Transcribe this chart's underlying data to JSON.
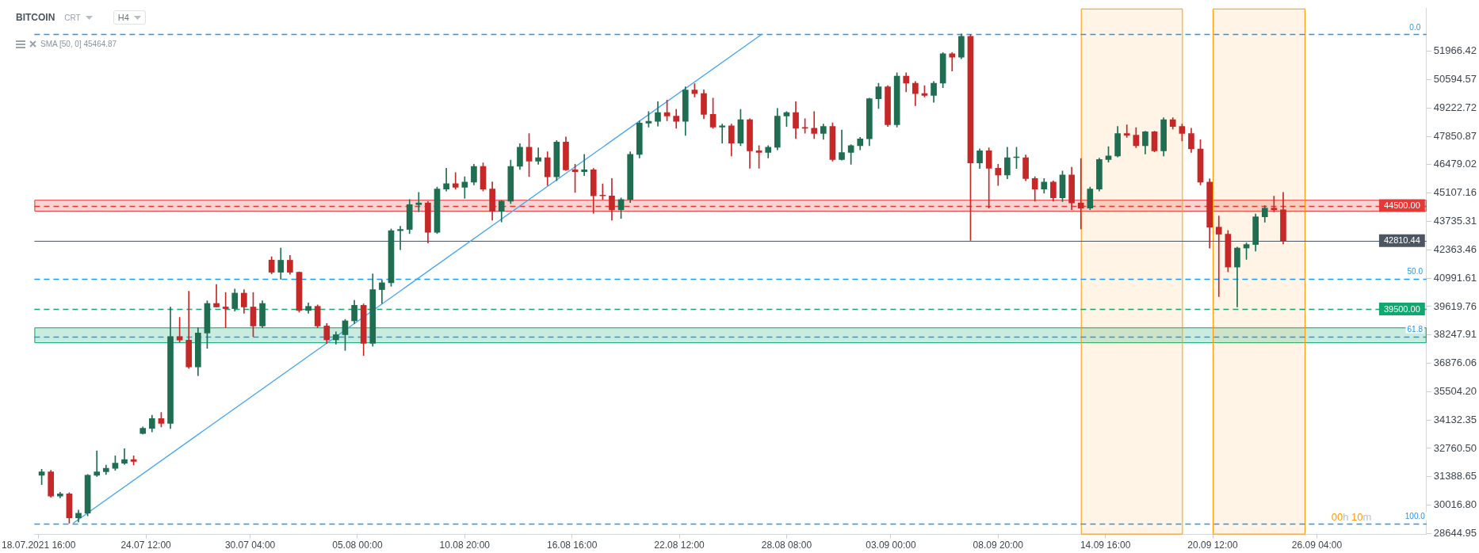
{
  "chart_data": {
    "type": "candlestick",
    "title": "BITCOIN",
    "annotations": [
      "CRT",
      "H4",
      "SMA [50, 0] 45464.87",
      "00h 10m",
      {
        "text": "0.0",
        "x": "2021-10-01T12:00",
        "y": 52800
      },
      {
        "text": "50.0",
        "x": "2021-10-01T12:00",
        "y": 40970
      },
      {
        "text": "61.8",
        "x": "2021-10-01T12:00",
        "y": 38178
      },
      {
        "text": "100.0",
        "x": "2021-10-01T12:00",
        "y": 29140
      }
    ],
    "xlim": [
      "2021-07-18T10:30",
      "2021-10-02T03:00"
    ],
    "xticks": [
      {
        "value": "2021-07-18T16:00",
        "label": "18.07.2021 16:00"
      },
      {
        "value": "2021-07-24T12:00",
        "label": "24.07 12:00"
      },
      {
        "value": "2021-07-30T04:00",
        "label": "30.07 04:00"
      },
      {
        "value": "2021-08-05T00:00",
        "label": "05.08 00:00"
      },
      {
        "value": "2021-08-10T20:00",
        "label": "10.08 20:00"
      },
      {
        "value": "2021-08-16T16:00",
        "label": "16.08 16:00"
      },
      {
        "value": "2021-08-22T12:00",
        "label": "22.08 12:00"
      },
      {
        "value": "2021-08-28T08:00",
        "label": "28.08 08:00"
      },
      {
        "value": "2021-09-03T00:00",
        "label": "03.09 00:00"
      },
      {
        "value": "2021-09-08T20:00",
        "label": "08.09 20:00"
      },
      {
        "value": "2021-09-14T16:00",
        "label": "14.09 16:00"
      },
      {
        "value": "2021-09-20T12:00",
        "label": "20.09 12:00"
      },
      {
        "value": "2021-09-26T04:00",
        "label": "26.09 04:00"
      }
    ],
    "ylim": [
      28600,
      54030
    ],
    "yticks": [
      28644.95,
      {
        "value": 30016.8,
        "label": "30016.80"
      },
      31388.65,
      {
        "value": 32760.5,
        "label": "32760.50"
      },
      34132.35,
      {
        "value": 35504.2,
        "label": "35504.20"
      },
      36876.06,
      38247.91,
      39619.76,
      40991.61,
      42363.46,
      43735.31,
      45107.16,
      46479.02,
      47850.87,
      49222.72,
      50594.57,
      51966.42
    ],
    "series": [
      {
        "x": [
          "2021-07-18T20:00",
          "2021-07-19T08:00",
          "2021-07-19T20:00",
          "2021-07-20T08:00",
          "2021-07-20T20:00",
          "2021-07-21T08:00",
          "2021-07-21T20:00",
          "2021-07-22T08:00",
          "2021-07-22T20:00",
          "2021-07-23T08:00",
          "2021-07-23T20:00",
          "2021-07-24T08:00",
          "2021-07-24T20:00",
          "2021-07-25T08:00",
          "2021-07-25T20:00",
          "2021-07-26T08:00",
          "2021-07-26T20:00",
          "2021-07-27T08:00",
          "2021-07-27T20:00",
          "2021-07-28T08:00",
          "2021-07-28T20:00",
          "2021-07-29T08:00",
          "2021-07-29T20:00",
          "2021-07-30T08:00",
          "2021-07-30T20:00",
          "2021-07-31T08:00",
          "2021-07-31T20:00",
          "2021-08-01T08:00",
          "2021-08-01T20:00",
          "2021-08-02T08:00",
          "2021-08-02T20:00",
          "2021-08-03T08:00",
          "2021-08-03T20:00",
          "2021-08-04T08:00",
          "2021-08-04T20:00",
          "2021-08-05T08:00",
          "2021-08-05T20:00",
          "2021-08-06T08:00",
          "2021-08-06T20:00",
          "2021-08-07T08:00",
          "2021-08-07T20:00",
          "2021-08-08T08:00",
          "2021-08-08T20:00",
          "2021-08-09T08:00",
          "2021-08-09T20:00",
          "2021-08-10T08:00",
          "2021-08-10T20:00",
          "2021-08-11T08:00",
          "2021-08-11T20:00",
          "2021-08-12T08:00",
          "2021-08-12T20:00",
          "2021-08-13T08:00",
          "2021-08-13T20:00",
          "2021-08-14T08:00",
          "2021-08-14T20:00",
          "2021-08-15T08:00",
          "2021-08-15T20:00",
          "2021-08-16T08:00",
          "2021-08-16T20:00",
          "2021-08-17T08:00",
          "2021-08-17T20:00",
          "2021-08-18T08:00",
          "2021-08-18T20:00",
          "2021-08-19T08:00",
          "2021-08-19T20:00",
          "2021-08-20T08:00",
          "2021-08-20T20:00",
          "2021-08-21T08:00",
          "2021-08-21T20:00",
          "2021-08-22T08:00",
          "2021-08-22T20:00",
          "2021-08-23T08:00",
          "2021-08-23T20:00",
          "2021-08-24T08:00",
          "2021-08-24T20:00",
          "2021-08-25T08:00",
          "2021-08-25T20:00",
          "2021-08-26T08:00",
          "2021-08-26T20:00",
          "2021-08-27T08:00",
          "2021-08-27T20:00",
          "2021-08-28T08:00",
          "2021-08-28T20:00",
          "2021-08-29T08:00",
          "2021-08-29T20:00",
          "2021-08-30T08:00",
          "2021-08-30T20:00",
          "2021-08-31T08:00",
          "2021-08-31T20:00",
          "2021-09-01T08:00",
          "2021-09-01T20:00",
          "2021-09-02T08:00",
          "2021-09-02T20:00",
          "2021-09-03T08:00",
          "2021-09-03T20:00",
          "2021-09-04T08:00",
          "2021-09-04T20:00",
          "2021-09-05T08:00",
          "2021-09-05T20:00",
          "2021-09-06T08:00",
          "2021-09-06T20:00",
          "2021-09-07T08:00",
          "2021-09-07T20:00",
          "2021-09-08T08:00",
          "2021-09-08T20:00",
          "2021-09-09T08:00",
          "2021-09-09T20:00",
          "2021-09-10T08:00",
          "2021-09-10T20:00",
          "2021-09-11T08:00",
          "2021-09-11T20:00",
          "2021-09-12T08:00",
          "2021-09-12T20:00",
          "2021-09-13T08:00",
          "2021-09-13T20:00",
          "2021-09-14T08:00",
          "2021-09-14T20:00",
          "2021-09-15T08:00",
          "2021-09-15T20:00",
          "2021-09-16T08:00",
          "2021-09-16T20:00",
          "2021-09-17T08:00",
          "2021-09-17T20:00",
          "2021-09-18T08:00",
          "2021-09-18T20:00",
          "2021-09-19T08:00",
          "2021-09-19T20:00",
          "2021-09-20T08:00",
          "2021-09-20T20:00",
          "2021-09-21T08:00",
          "2021-09-21T20:00",
          "2021-09-22T08:00",
          "2021-09-22T20:00",
          "2021-09-23T08:00",
          "2021-09-23T20:00",
          "2021-09-24T08:00"
        ],
        "ohlc": [
          [
            31460,
            31750,
            31010,
            31630
          ],
          [
            31630,
            31700,
            30400,
            30460
          ],
          [
            30460,
            30640,
            30370,
            30560
          ],
          [
            30560,
            30620,
            29140,
            29400
          ],
          [
            29400,
            29780,
            29200,
            29630
          ],
          [
            29630,
            31500,
            29500,
            31460
          ],
          [
            31460,
            32640,
            31400,
            31630
          ],
          [
            31630,
            31950,
            31500,
            31800
          ],
          [
            31800,
            32400,
            31700,
            32050
          ],
          [
            32050,
            32750,
            31990,
            32220
          ],
          [
            32220,
            32400,
            31960,
            32130
          ],
          [
            33480,
            33800,
            33450,
            33730
          ],
          [
            33730,
            34370,
            33560,
            34200
          ],
          [
            34200,
            34500,
            33800,
            33970
          ],
          [
            33970,
            39600,
            33720,
            38170
          ],
          [
            38170,
            39100,
            37900,
            38000
          ],
          [
            38000,
            40360,
            36630,
            36700
          ],
          [
            36700,
            38590,
            36280,
            38340
          ],
          [
            38340,
            39900,
            37600,
            39770
          ],
          [
            39770,
            40690,
            39600,
            39600
          ],
          [
            39600,
            40300,
            38600,
            39520
          ],
          [
            39520,
            40470,
            39400,
            40270
          ],
          [
            40270,
            40440,
            39300,
            39600
          ],
          [
            39600,
            40300,
            38170,
            38680
          ],
          [
            38680,
            39900,
            38600,
            39770
          ],
          [
            41870,
            42030,
            41200,
            41280
          ],
          [
            41280,
            42450,
            40940,
            41860
          ],
          [
            41860,
            42100,
            41180,
            41280
          ],
          [
            41280,
            41300,
            39350,
            39430
          ],
          [
            39430,
            39800,
            39300,
            39630
          ],
          [
            39630,
            39700,
            38600,
            38680
          ],
          [
            38680,
            38800,
            37830,
            38010
          ],
          [
            38010,
            38400,
            37800,
            38260
          ],
          [
            38260,
            39000,
            37500,
            38930
          ],
          [
            38930,
            39920,
            38800,
            39680
          ],
          [
            39680,
            39750,
            37250,
            37840
          ],
          [
            37840,
            41200,
            37700,
            40440
          ],
          [
            40440,
            40900,
            39770,
            40770
          ],
          [
            40770,
            43375,
            40600,
            43290
          ],
          [
            43290,
            43500,
            42370,
            43350
          ],
          [
            43350,
            44800,
            43150,
            44550
          ],
          [
            44550,
            45140,
            44200,
            44630
          ],
          [
            44630,
            44700,
            42700,
            43210
          ],
          [
            43210,
            45400,
            43150,
            45300
          ],
          [
            45300,
            46310,
            45200,
            45560
          ],
          [
            45560,
            46100,
            45300,
            45390
          ],
          [
            45390,
            45900,
            44850,
            45640
          ],
          [
            45640,
            46500,
            45500,
            46400
          ],
          [
            46400,
            46570,
            45200,
            45300
          ],
          [
            45300,
            45650,
            43800,
            44220
          ],
          [
            44220,
            44750,
            43710,
            44720
          ],
          [
            44720,
            46700,
            44600,
            46400
          ],
          [
            46400,
            47500,
            46250,
            47320
          ],
          [
            47320,
            47990,
            45900,
            46650
          ],
          [
            46650,
            47300,
            46500,
            46820
          ],
          [
            46820,
            47100,
            45470,
            45890
          ],
          [
            45890,
            47650,
            45700,
            47570
          ],
          [
            47570,
            47820,
            46200,
            46230
          ],
          [
            46230,
            46500,
            45140,
            46140
          ],
          [
            46140,
            46980,
            45950,
            46230
          ],
          [
            46230,
            46300,
            44130,
            44970
          ],
          [
            44970,
            45550,
            44800,
            44970
          ],
          [
            44970,
            45810,
            43800,
            44300
          ],
          [
            44300,
            44870,
            43880,
            44800
          ],
          [
            44800,
            47100,
            44650,
            46980
          ],
          [
            46980,
            48600,
            46800,
            48490
          ],
          [
            48490,
            49050,
            48300,
            48580
          ],
          [
            48580,
            49530,
            48350,
            49000
          ],
          [
            49000,
            49600,
            48600,
            48830
          ],
          [
            48830,
            49150,
            48240,
            48580
          ],
          [
            48580,
            50250,
            47900,
            50090
          ],
          [
            50090,
            50400,
            49750,
            49920
          ],
          [
            49920,
            50100,
            48700,
            48910
          ],
          [
            48910,
            49700,
            48230,
            48300
          ],
          [
            48300,
            48450,
            47520,
            48360
          ],
          [
            48360,
            48450,
            46900,
            47520
          ],
          [
            47520,
            49150,
            47400,
            48660
          ],
          [
            48660,
            48700,
            46310,
            47150
          ],
          [
            47150,
            47400,
            46310,
            47070
          ],
          [
            47070,
            47400,
            46800,
            47320
          ],
          [
            47320,
            49200,
            47200,
            48830
          ],
          [
            48830,
            49050,
            48330,
            49000
          ],
          [
            49000,
            49530,
            47740,
            48240
          ],
          [
            48240,
            48700,
            48000,
            48240
          ],
          [
            48240,
            49050,
            47740,
            47990
          ],
          [
            47990,
            48450,
            47700,
            48330
          ],
          [
            48330,
            48500,
            46650,
            46730
          ],
          [
            46730,
            48160,
            46700,
            47070
          ],
          [
            47070,
            47450,
            46500,
            47400
          ],
          [
            47400,
            47800,
            47200,
            47730
          ],
          [
            47730,
            49700,
            47400,
            49670
          ],
          [
            49670,
            50420,
            49200,
            50250
          ],
          [
            50250,
            50300,
            48330,
            48410
          ],
          [
            48410,
            50930,
            48300,
            50760
          ],
          [
            50760,
            50930,
            50000,
            50420
          ],
          [
            50420,
            50500,
            49330,
            49920
          ],
          [
            49920,
            50300,
            49750,
            49830
          ],
          [
            49830,
            50500,
            49500,
            50420
          ],
          [
            50420,
            51900,
            50200,
            51850
          ],
          [
            51850,
            51900,
            51010,
            51680
          ],
          [
            51680,
            52800,
            51600,
            52690
          ],
          [
            52690,
            52770,
            42820,
            46560
          ],
          [
            46560,
            47250,
            46300,
            47150
          ],
          [
            47150,
            47300,
            44380,
            46310
          ],
          [
            46310,
            46500,
            45470,
            45980
          ],
          [
            45980,
            47320,
            45800,
            46820
          ],
          [
            46820,
            47320,
            46300,
            46820
          ],
          [
            46820,
            46950,
            45700,
            45810
          ],
          [
            45810,
            45900,
            44720,
            45300
          ],
          [
            45300,
            45810,
            45100,
            45640
          ],
          [
            45640,
            45700,
            44720,
            44880
          ],
          [
            44880,
            46180,
            44700,
            45980
          ],
          [
            45980,
            46360,
            44300,
            44630
          ],
          [
            44630,
            46780,
            43370,
            44380
          ],
          [
            44380,
            45400,
            44300,
            45300
          ],
          [
            45300,
            46800,
            45200,
            46730
          ],
          [
            46730,
            47350,
            46600,
            46900
          ],
          [
            46900,
            48330,
            46850,
            47990
          ],
          [
            47990,
            48410,
            47800,
            47910
          ],
          [
            47910,
            48270,
            47300,
            47400
          ],
          [
            47400,
            48100,
            47000,
            48070
          ],
          [
            48070,
            48100,
            47100,
            47150
          ],
          [
            47150,
            48750,
            46900,
            48660
          ],
          [
            48660,
            48750,
            48200,
            48330
          ],
          [
            48330,
            48450,
            47630,
            47990
          ],
          [
            47990,
            48240,
            47070,
            47240
          ],
          [
            47240,
            47690,
            45500,
            45640
          ],
          [
            45640,
            45800,
            42450,
            43460
          ],
          [
            43460,
            44000,
            40100,
            43120
          ],
          [
            43120,
            43300,
            41300,
            41530
          ],
          [
            41530,
            42500,
            39600,
            42450
          ],
          [
            42450,
            42700,
            41900,
            42620
          ],
          [
            42620,
            44100,
            42300,
            43960
          ],
          [
            43960,
            44500,
            43700,
            44380
          ],
          [
            44380,
            44960,
            44200,
            44300
          ],
          [
            44300,
            45140,
            42650,
            42810.44
          ]
        ],
        "colors": [
          "#1f6e52",
          "#c62828",
          "#1f6e52",
          "#c62828",
          "#1f6e52",
          "#1f6e52",
          "#1f6e52",
          "#1f6e52",
          "#1f6e52",
          "#1f6e52",
          "#c62828",
          "#1f6e52",
          "#1f6e52",
          "#c62828",
          "#1f6e52",
          "#c62828",
          "#c62828",
          "#1f6e52",
          "#1f6e52",
          "#c62828",
          "#c62828",
          "#1f6e52",
          "#c62828",
          "#c62828",
          "#1f6e52",
          "#c62828",
          "#1f6e52",
          "#c62828",
          "#c62828",
          "#1f6e52",
          "#c62828",
          "#c62828",
          "#1f6e52",
          "#1f6e52",
          "#1f6e52",
          "#c62828",
          "#1f6e52",
          "#1f6e52",
          "#1f6e52",
          "#1f6e52",
          "#1f6e52",
          "#1f6e52",
          "#c62828",
          "#1f6e52",
          "#1f6e52",
          "#c62828",
          "#1f6e52",
          "#1f6e52",
          "#c62828",
          "#c62828",
          "#1f6e52",
          "#1f6e52",
          "#1f6e52",
          "#c62828",
          "#1f6e52",
          "#c62828",
          "#1f6e52",
          "#c62828",
          "#c62828",
          "#1f6e52",
          "#c62828",
          "#c62828",
          "#c62828",
          "#1f6e52",
          "#1f6e52",
          "#1f6e52",
          "#1f6e52",
          "#1f6e52",
          "#c62828",
          "#c62828",
          "#1f6e52",
          "#c62828",
          "#c62828",
          "#c62828",
          "#1f6e52",
          "#c62828",
          "#1f6e52",
          "#c62828",
          "#c62828",
          "#1f6e52",
          "#1f6e52",
          "#1f6e52",
          "#c62828",
          "#c62828",
          "#c62828",
          "#1f6e52",
          "#c62828",
          "#1f6e52",
          "#1f6e52",
          "#1f6e52",
          "#1f6e52",
          "#1f6e52",
          "#c62828",
          "#1f6e52",
          "#c62828",
          "#c62828",
          "#c62828",
          "#1f6e52",
          "#1f6e52",
          "#c62828",
          "#1f6e52",
          "#c62828",
          "#1f6e52",
          "#c62828",
          "#c62828",
          "#1f6e52",
          "#1f6e52",
          "#c62828",
          "#c62828",
          "#1f6e52",
          "#c62828",
          "#1f6e52",
          "#c62828",
          "#c62828",
          "#1f6e52",
          "#1f6e52",
          "#1f6e52",
          "#1f6e52",
          "#c62828",
          "#c62828",
          "#1f6e52",
          "#c62828",
          "#1f6e52",
          "#c62828",
          "#c62828",
          "#c62828",
          "#c62828",
          "#c62828",
          "#c62828",
          "#c62828",
          "#1f6e52",
          "#1f6e52",
          "#1f6e52",
          "#1f6e52",
          "#c62828",
          "#c62828"
        ]
      },
      {
        "type": "line",
        "x": [
          "2021-07-20T13:00",
          "2021-08-27T00:00"
        ],
        "values": [
          29140,
          52800
        ],
        "color": "#42a5f5"
      }
    ],
    "ref_lines": [
      {
        "axis": "y",
        "value": 52800,
        "color": "#2196f3",
        "line_style": "dashed"
      },
      {
        "axis": "y",
        "value": 40970,
        "color": "#2196f3",
        "line_style": "dashed"
      },
      {
        "axis": "y",
        "value": 38178,
        "color": "#2196f3",
        "line_style": "dashed"
      },
      {
        "axis": "y",
        "value": 29140,
        "color": "#2196f3",
        "line_style": "dashed"
      },
      {
        "axis": "y",
        "value": 44500,
        "label": "44500.00",
        "color": "#e53935",
        "line_style": "dashed"
      },
      {
        "axis": "y",
        "value": 39500,
        "label": "39500.00",
        "color": "#0fa86e",
        "line_style": "dashed"
      },
      {
        "axis": "y",
        "value": 42810.44,
        "label": "42810.44",
        "color": "#4b5661",
        "line_style": "solid"
      }
    ],
    "bands": [
      {
        "axis": "y",
        "from": 44250,
        "to": 44780,
        "color": "#e53935"
      },
      {
        "axis": "y",
        "from": 37890,
        "to": 38610,
        "color": "#0fa86e"
      },
      {
        "axis": "x",
        "from": "2021-09-13T08:00",
        "to": "2021-09-18T20:00",
        "color": "#ff9800"
      },
      {
        "axis": "x",
        "from": "2021-09-20T12:00",
        "to": "2021-09-25T12:00",
        "color": "#ff9800"
      }
    ]
  }
}
